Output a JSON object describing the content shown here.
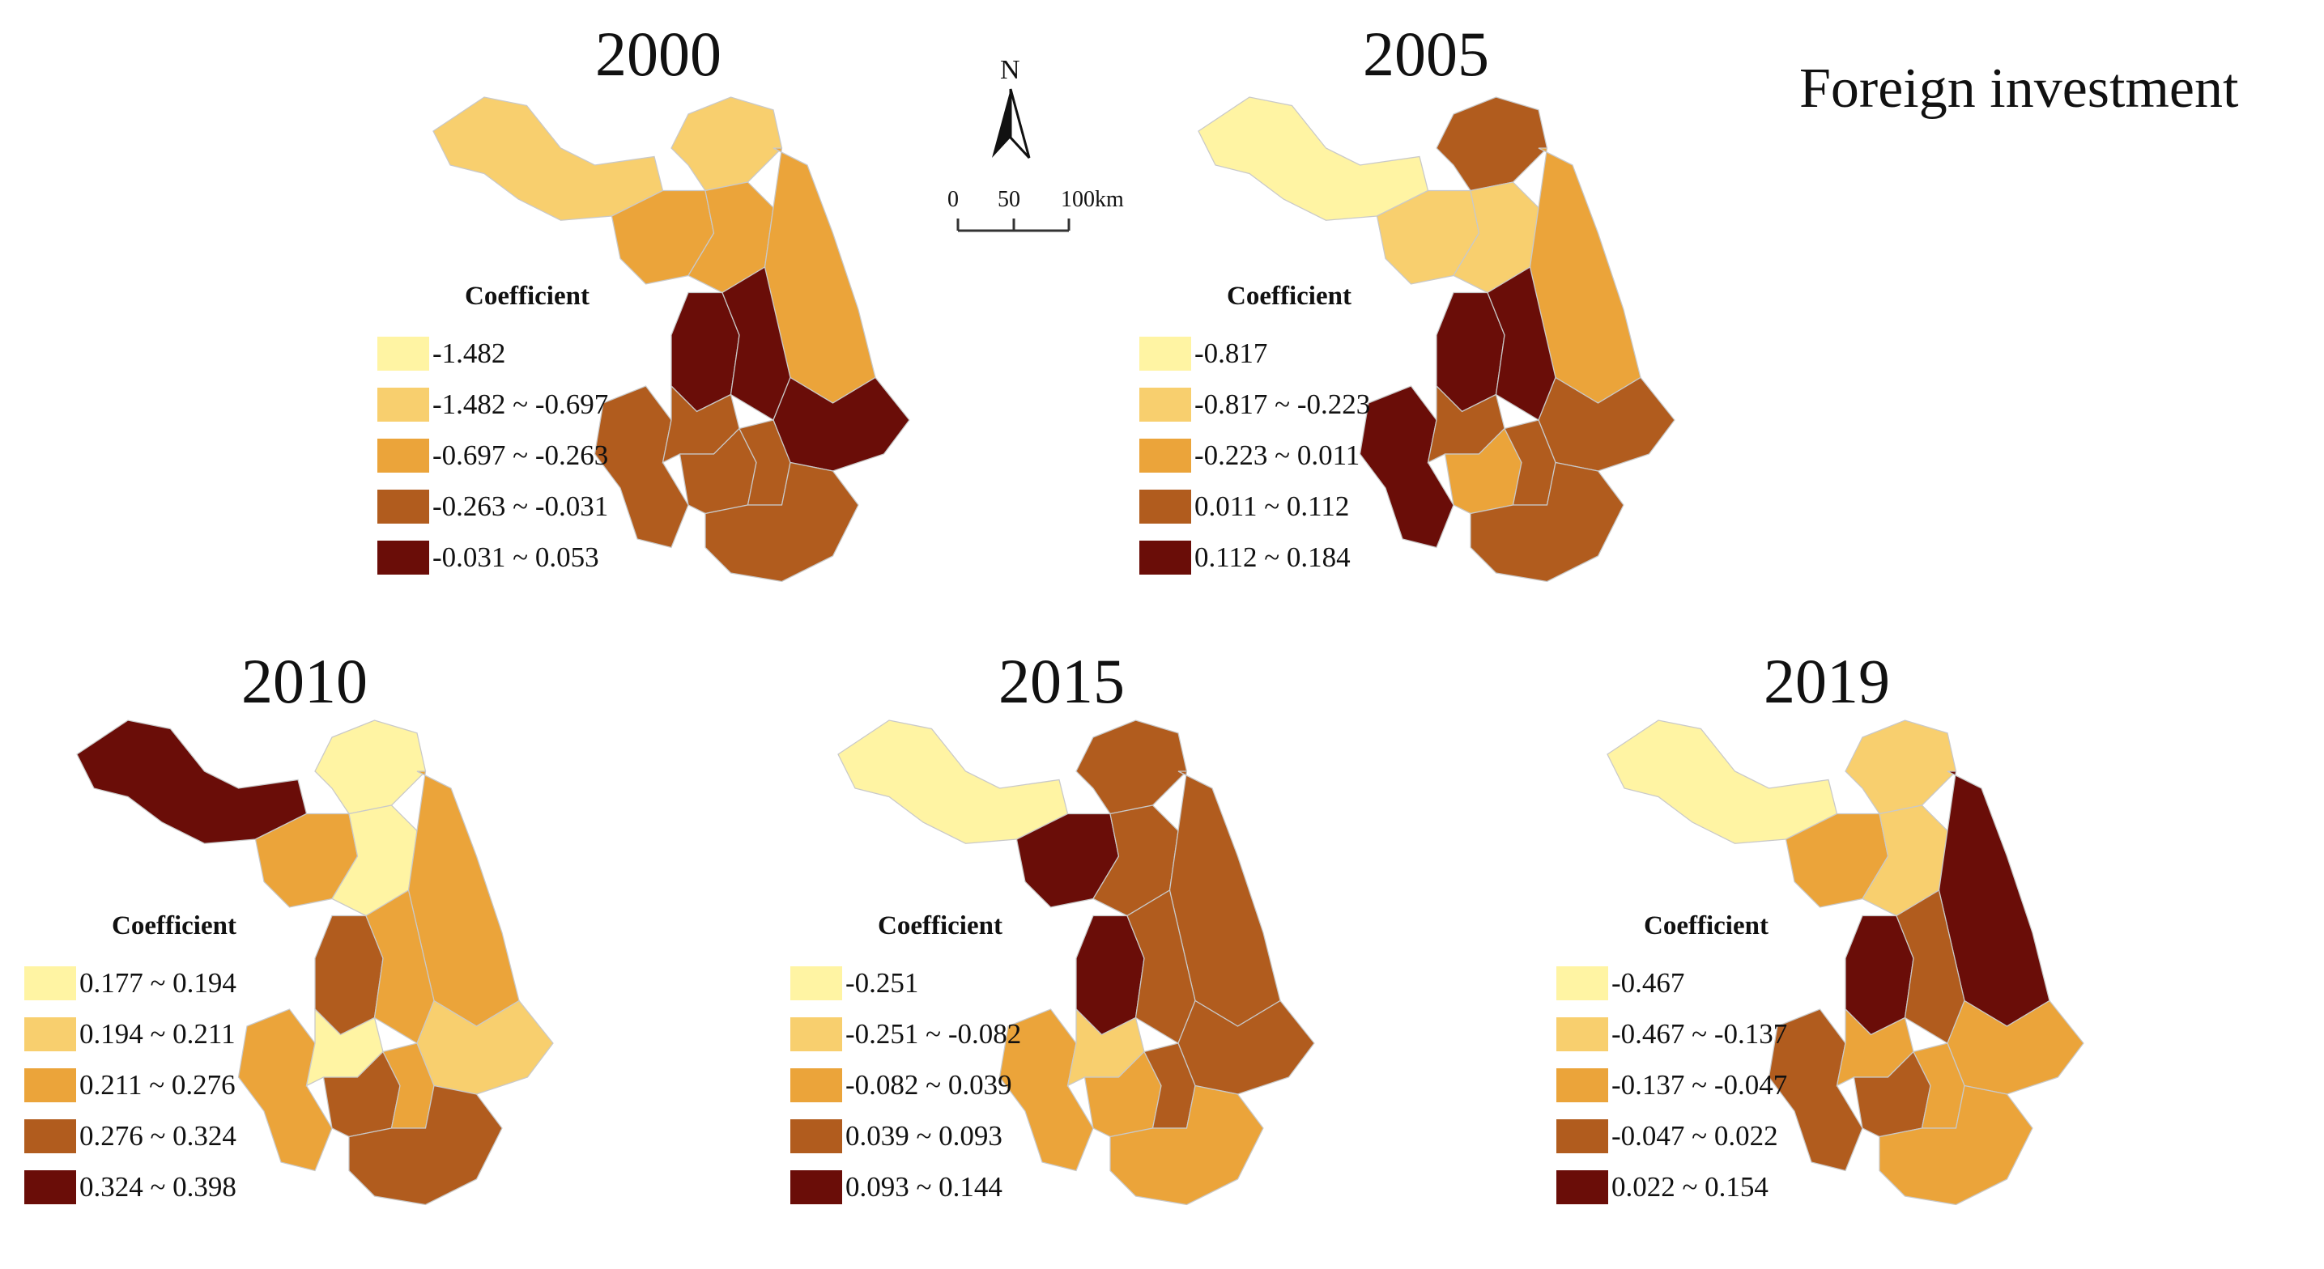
{
  "title": "Foreign investment",
  "north_label": "N",
  "scale_bar": {
    "ticks": [
      "0",
      "50",
      "100km"
    ]
  },
  "legend_title": "Coefficient",
  "panels": [
    {
      "year": "2000",
      "legend": [
        {
          "label": "-1.482",
          "color": "#FFF4A3"
        },
        {
          "label": "-1.482 ~ -0.697",
          "color": "#F8CF6E"
        },
        {
          "label": "-0.697 ~ -0.263",
          "color": "#EBA43A"
        },
        {
          "label": "-0.263 ~ -0.031",
          "color": "#B15C1E"
        },
        {
          "label": "-0.031 ~ 0.053",
          "color": "#6A0D08"
        }
      ],
      "regions": [
        1,
        1,
        2,
        2,
        2,
        3,
        4,
        4,
        4,
        3,
        3,
        3,
        3
      ]
    },
    {
      "year": "2005",
      "legend": [
        {
          "label": "-0.817",
          "color": "#FFF4A3"
        },
        {
          "label": "-0.817 ~ -0.223",
          "color": "#F8CF6E"
        },
        {
          "label": "-0.223 ~ 0.011",
          "color": "#EBA43A"
        },
        {
          "label": "0.011 ~ 0.112",
          "color": "#B15C1E"
        },
        {
          "label": "0.112 ~ 0.184",
          "color": "#6A0D08"
        }
      ],
      "regions": [
        0,
        3,
        1,
        1,
        2,
        4,
        4,
        4,
        3,
        3,
        2,
        3,
        3
      ]
    },
    {
      "year": "2010",
      "legend": [
        {
          "label": "0.177 ~ 0.194",
          "color": "#FFF4A3"
        },
        {
          "label": "0.194 ~ 0.211",
          "color": "#F8CF6E"
        },
        {
          "label": "0.211 ~ 0.276",
          "color": "#EBA43A"
        },
        {
          "label": "0.276 ~ 0.324",
          "color": "#B15C1E"
        },
        {
          "label": "0.324 ~ 0.398",
          "color": "#6A0D08"
        }
      ],
      "regions": [
        4,
        0,
        2,
        0,
        2,
        2,
        3,
        2,
        1,
        0,
        3,
        2,
        3
      ]
    },
    {
      "year": "2015",
      "legend": [
        {
          "label": "-0.251",
          "color": "#FFF4A3"
        },
        {
          "label": "-0.251 ~ -0.082",
          "color": "#F8CF6E"
        },
        {
          "label": "-0.082 ~ 0.039",
          "color": "#EBA43A"
        },
        {
          "label": "0.039 ~ 0.093",
          "color": "#B15C1E"
        },
        {
          "label": "0.093 ~ 0.144",
          "color": "#6A0D08"
        }
      ],
      "regions": [
        0,
        3,
        4,
        3,
        3,
        2,
        4,
        3,
        3,
        1,
        2,
        3,
        2
      ]
    },
    {
      "year": "2019",
      "legend": [
        {
          "label": "-0.467",
          "color": "#FFF4A3"
        },
        {
          "label": "-0.467 ~ -0.137",
          "color": "#F8CF6E"
        },
        {
          "label": "-0.137 ~ -0.047",
          "color": "#EBA43A"
        },
        {
          "label": "-0.047 ~ 0.022",
          "color": "#B15C1E"
        },
        {
          "label": "0.022 ~ 0.154",
          "color": "#6A0D08"
        }
      ],
      "regions": [
        0,
        1,
        2,
        1,
        4,
        3,
        4,
        3,
        2,
        2,
        3,
        2,
        2
      ]
    }
  ]
}
